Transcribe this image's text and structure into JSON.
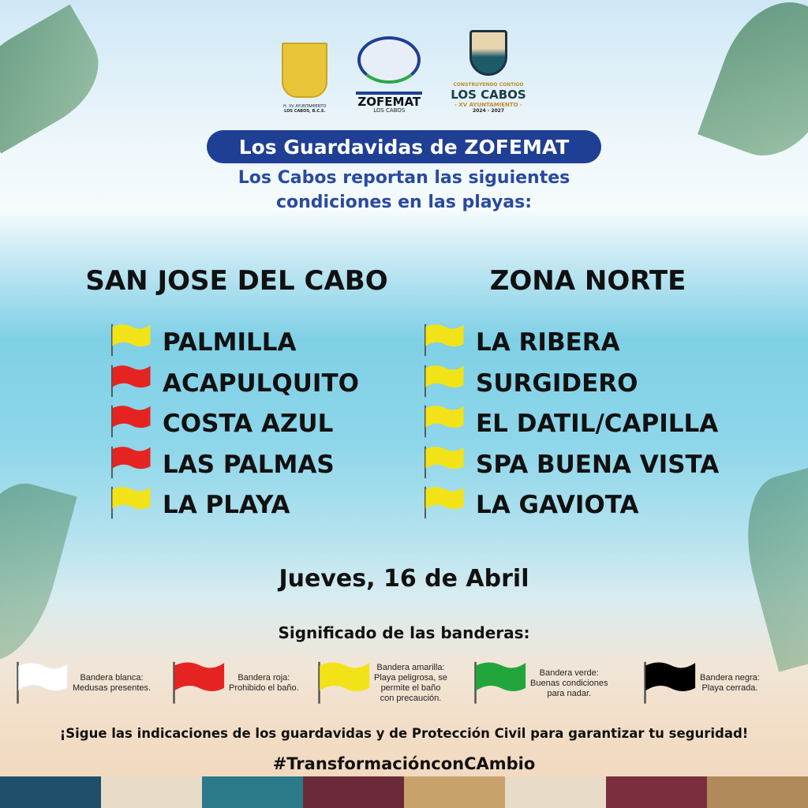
{
  "logos": {
    "left": {
      "line1": "H. XV AYUNTAMIENTO",
      "line2": "LOS CABOS, B.C.S."
    },
    "center": {
      "name": "ZOFEMAT",
      "sub": "LOS CABOS"
    },
    "right": {
      "tag": "CONSTRUYENDO CONTIGO",
      "name": "LOS CABOS",
      "sub": "- XV AYUNTAMIENTO -",
      "years": "2024 - 2027"
    }
  },
  "header": {
    "title": "Los Guardavidas de ZOFEMAT",
    "subtitle_line1": "Los Cabos reportan las siguientes",
    "subtitle_line2": "condiciones en las playas:"
  },
  "columns": [
    {
      "title": "SAN JOSE DEL CABO",
      "beaches": [
        {
          "name": "PALMILLA",
          "flag": "yellow"
        },
        {
          "name": "ACAPULQUITO",
          "flag": "red"
        },
        {
          "name": "COSTA AZUL",
          "flag": "red"
        },
        {
          "name": "LAS PALMAS",
          "flag": "red"
        },
        {
          "name": "LA PLAYA",
          "flag": "yellow"
        }
      ]
    },
    {
      "title": "ZONA NORTE",
      "beaches": [
        {
          "name": "LA RIBERA",
          "flag": "yellow"
        },
        {
          "name": "SURGIDERO",
          "flag": "yellow"
        },
        {
          "name": "EL DATIL/CAPILLA",
          "flag": "yellow"
        },
        {
          "name": "SPA BUENA VISTA",
          "flag": "yellow"
        },
        {
          "name": "LA GAVIOTA",
          "flag": "yellow"
        }
      ]
    }
  ],
  "date": "Jueves, 16 de Abril",
  "legend": {
    "title": "Significado de las banderas:",
    "items": [
      {
        "color": "#ffffff",
        "line1": "Bandera blanca:",
        "line2": "Medusas presentes.",
        "line3": "",
        "line4": ""
      },
      {
        "color": "#e52421",
        "line1": "Bandera roja:",
        "line2": "Prohibido el baño.",
        "line3": "",
        "line4": ""
      },
      {
        "color": "#f2e318",
        "line1": "Bandera amarilla:",
        "line2": "Playa peligrosa, se",
        "line3": "permite el baño",
        "line4": "con precaución."
      },
      {
        "color": "#22a63c",
        "line1": "Bandera verde:",
        "line2": "Buenas condiciones",
        "line3": "para nadar.",
        "line4": ""
      },
      {
        "color": "#000000",
        "line1": "Bandera negra:",
        "line2": "Playa cerrada.",
        "line3": "",
        "line4": ""
      }
    ]
  },
  "flag_colors": {
    "yellow": "#f2e318",
    "red": "#e52421"
  },
  "footer": {
    "notice": "¡Sigue las indicaciones de los guardavidas y de Protección Civil para garantizar tu seguridad!",
    "hashtag": "#TransformaciónconCAmbio"
  }
}
